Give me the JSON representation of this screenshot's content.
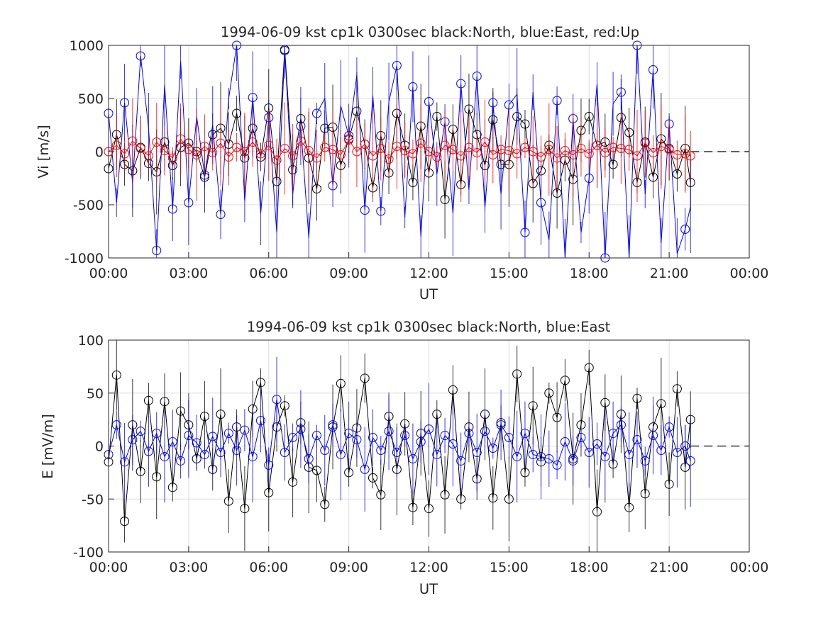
{
  "chart_data": [
    {
      "type": "line",
      "title": "1994-06-09 kst cp1k 0300sec black:North, blue:East, red:Up",
      "xlabel": "UT",
      "ylabel": "Vi [m/s]",
      "xlim": [
        0,
        24
      ],
      "ylim": [
        -1000,
        1000
      ],
      "x_ticks": [
        "00:00",
        "03:00",
        "06:00",
        "09:00",
        "12:00",
        "15:00",
        "18:00",
        "21:00",
        "00:00"
      ],
      "y_ticks": [
        "-1000",
        "-500",
        "0",
        "500",
        "1000"
      ],
      "grid": true,
      "marker": "circle",
      "data_end_hour": 21.8,
      "zero_line_after_end": true,
      "series": [
        {
          "name": "North",
          "color": "#000000",
          "marker_every": 1,
          "x": [
            0.0,
            0.3,
            0.6,
            0.9,
            1.2,
            1.5,
            1.8,
            2.1,
            2.4,
            2.7,
            3.0,
            3.3,
            3.6,
            3.9,
            4.2,
            4.5,
            4.8,
            5.1,
            5.4,
            5.7,
            6.0,
            6.3,
            6.6,
            6.9,
            7.2,
            7.5,
            7.8,
            8.1,
            8.4,
            8.7,
            9.0,
            9.3,
            9.6,
            9.9,
            10.2,
            10.5,
            10.8,
            11.1,
            11.4,
            11.7,
            12.0,
            12.3,
            12.6,
            12.9,
            13.2,
            13.5,
            13.8,
            14.1,
            14.4,
            14.7,
            15.0,
            15.3,
            15.6,
            15.9,
            16.2,
            16.5,
            16.8,
            17.1,
            17.4,
            17.7,
            18.0,
            18.3,
            18.6,
            18.9,
            19.2,
            19.5,
            19.8,
            20.1,
            20.4,
            20.7,
            21.0,
            21.3,
            21.6,
            21.8
          ],
          "y": [
            -160,
            160,
            -120,
            -180,
            40,
            -110,
            -190,
            90,
            -130,
            40,
            80,
            0,
            -240,
            160,
            220,
            70,
            360,
            -60,
            220,
            -50,
            410,
            -280,
            960,
            -170,
            310,
            -60,
            -350,
            220,
            230,
            -130,
            120,
            380,
            70,
            -340,
            150,
            -200,
            360,
            60,
            -290,
            240,
            -200,
            330,
            -450,
            210,
            -310,
            400,
            160,
            -130,
            300,
            -120,
            -120,
            330,
            260,
            -300,
            -180,
            60,
            -390,
            -80,
            -260,
            200,
            330,
            60,
            90,
            -120,
            320,
            180,
            -290,
            90,
            -240,
            120,
            30,
            -210,
            30,
            -290
          ]
        },
        {
          "name": "East",
          "color": "#0000ff",
          "marker_every": 2,
          "x": [
            0.0,
            0.3,
            0.6,
            0.9,
            1.2,
            1.5,
            1.8,
            2.1,
            2.4,
            2.7,
            3.0,
            3.3,
            3.6,
            3.9,
            4.2,
            4.5,
            4.8,
            5.1,
            5.4,
            5.7,
            6.0,
            6.3,
            6.6,
            6.9,
            7.2,
            7.5,
            7.8,
            8.1,
            8.4,
            8.7,
            9.0,
            9.3,
            9.6,
            9.9,
            10.2,
            10.5,
            10.8,
            11.1,
            11.4,
            11.7,
            12.0,
            12.3,
            12.6,
            12.9,
            13.2,
            13.5,
            13.8,
            14.1,
            14.4,
            14.7,
            15.0,
            15.3,
            15.6,
            15.9,
            16.2,
            16.5,
            16.8,
            17.1,
            17.4,
            17.7,
            18.0,
            18.3,
            18.6,
            18.9,
            19.2,
            19.5,
            19.8,
            20.1,
            20.4,
            20.7,
            21.0,
            21.3,
            21.6,
            21.8
          ],
          "y": [
            360,
            -480,
            460,
            -300,
            900,
            220,
            -930,
            630,
            -540,
            850,
            -480,
            330,
            -220,
            250,
            -590,
            500,
            1000,
            -460,
            510,
            -580,
            320,
            -760,
            950,
            -400,
            240,
            -810,
            360,
            500,
            -320,
            430,
            150,
            720,
            -550,
            530,
            -560,
            470,
            810,
            -620,
            610,
            -800,
            470,
            -210,
            280,
            -580,
            640,
            -360,
            710,
            -530,
            460,
            -400,
            440,
            540,
            -760,
            560,
            -480,
            -830,
            480,
            -1000,
            310,
            -760,
            -250,
            640,
            -1000,
            450,
            560,
            -1000,
            1000,
            -400,
            770,
            -860,
            260,
            -960,
            -730,
            -520
          ]
        },
        {
          "name": "Up",
          "color": "#ff0000",
          "marker_every": 1,
          "x": [
            0.0,
            0.3,
            0.6,
            0.9,
            1.2,
            1.5,
            1.8,
            2.1,
            2.4,
            2.7,
            3.0,
            3.3,
            3.6,
            3.9,
            4.2,
            4.5,
            4.8,
            5.1,
            5.4,
            5.7,
            6.0,
            6.3,
            6.6,
            6.9,
            7.2,
            7.5,
            7.8,
            8.1,
            8.4,
            8.7,
            9.0,
            9.3,
            9.6,
            9.9,
            10.2,
            10.5,
            10.8,
            11.1,
            11.4,
            11.7,
            12.0,
            12.3,
            12.6,
            12.9,
            13.2,
            13.5,
            13.8,
            14.1,
            14.4,
            14.7,
            15.0,
            15.3,
            15.6,
            15.9,
            16.2,
            16.5,
            16.8,
            17.1,
            17.4,
            17.7,
            18.0,
            18.3,
            18.6,
            18.9,
            19.2,
            19.5,
            19.8,
            20.1,
            20.4,
            20.7,
            21.0,
            21.3,
            21.6,
            21.8
          ],
          "y": [
            0,
            60,
            -20,
            100,
            30,
            -40,
            90,
            10,
            -60,
            120,
            20,
            -30,
            50,
            -10,
            80,
            -50,
            40,
            0,
            90,
            -20,
            60,
            -80,
            30,
            -40,
            100,
            10,
            -60,
            40,
            20,
            -30,
            110,
            0,
            70,
            -40,
            30,
            -70,
            50,
            10,
            -20,
            80,
            0,
            -50,
            60,
            20,
            -40,
            40,
            -10,
            90,
            -30,
            20,
            10,
            -20,
            40,
            0,
            -50,
            20,
            -60,
            10,
            -30,
            30,
            -20,
            60,
            -10,
            40,
            30,
            20,
            -40,
            80,
            -10,
            50,
            20,
            -30,
            -20,
            -40
          ]
        }
      ]
    },
    {
      "type": "line",
      "title": "1994-06-09 kst cp1k 0300sec black:North, blue:East",
      "xlabel": "UT",
      "ylabel": "E [mV/m]",
      "xlim": [
        0,
        24
      ],
      "ylim": [
        -100,
        100
      ],
      "x_ticks": [
        "00:00",
        "03:00",
        "06:00",
        "09:00",
        "12:00",
        "15:00",
        "18:00",
        "21:00",
        "00:00"
      ],
      "y_ticks": [
        "-100",
        "-50",
        "0",
        "50",
        "100"
      ],
      "grid": true,
      "marker": "circle",
      "data_end_hour": 21.8,
      "zero_line_after_end": true,
      "series": [
        {
          "name": "North",
          "color": "#000000",
          "marker_every": 1,
          "x": [
            0.0,
            0.3,
            0.6,
            0.9,
            1.2,
            1.5,
            1.8,
            2.1,
            2.4,
            2.7,
            3.0,
            3.3,
            3.6,
            3.9,
            4.2,
            4.5,
            4.8,
            5.1,
            5.4,
            5.7,
            6.0,
            6.3,
            6.6,
            6.9,
            7.2,
            7.5,
            7.8,
            8.1,
            8.4,
            8.7,
            9.0,
            9.3,
            9.6,
            9.9,
            10.2,
            10.5,
            10.8,
            11.1,
            11.4,
            11.7,
            12.0,
            12.3,
            12.6,
            12.9,
            13.2,
            13.5,
            13.8,
            14.1,
            14.4,
            14.7,
            15.0,
            15.3,
            15.6,
            15.9,
            16.2,
            16.5,
            16.8,
            17.1,
            17.4,
            17.7,
            18.0,
            18.3,
            18.6,
            18.9,
            19.2,
            19.5,
            19.8,
            20.1,
            20.4,
            20.7,
            21.0,
            21.3,
            21.6,
            21.8
          ],
          "y": [
            -15,
            67,
            -71,
            20,
            -24,
            43,
            -29,
            42,
            -39,
            33,
            20,
            -12,
            28,
            -22,
            30,
            -52,
            18,
            -59,
            35,
            60,
            -44,
            18,
            38,
            -34,
            22,
            -20,
            -23,
            -55,
            18,
            59,
            -25,
            17,
            64,
            -30,
            -46,
            28,
            -22,
            21,
            -58,
            12,
            -59,
            30,
            -46,
            53,
            -50,
            18,
            -31,
            30,
            -49,
            22,
            -50,
            68,
            -25,
            38,
            -15,
            50,
            27,
            62,
            -12,
            20,
            74,
            -62,
            41,
            -17,
            30,
            -58,
            45,
            -45,
            18,
            40,
            -36,
            54,
            -20,
            25
          ]
        },
        {
          "name": "East",
          "color": "#0000ff",
          "marker_every": 1,
          "x": [
            0.0,
            0.3,
            0.6,
            0.9,
            1.2,
            1.5,
            1.8,
            2.1,
            2.4,
            2.7,
            3.0,
            3.3,
            3.6,
            3.9,
            4.2,
            4.5,
            4.8,
            5.1,
            5.4,
            5.7,
            6.0,
            6.3,
            6.6,
            6.9,
            7.2,
            7.5,
            7.8,
            8.1,
            8.4,
            8.7,
            9.0,
            9.3,
            9.6,
            9.9,
            10.2,
            10.5,
            10.8,
            11.1,
            11.4,
            11.7,
            12.0,
            12.3,
            12.6,
            12.9,
            13.2,
            13.5,
            13.8,
            14.1,
            14.4,
            14.7,
            15.0,
            15.3,
            15.6,
            15.9,
            16.2,
            16.5,
            16.8,
            17.1,
            17.4,
            17.7,
            18.0,
            18.3,
            18.6,
            18.9,
            19.2,
            19.5,
            19.8,
            20.1,
            20.4,
            20.7,
            21.0,
            21.3,
            21.6,
            21.8
          ],
          "y": [
            -8,
            20,
            -15,
            6,
            14,
            -5,
            12,
            -10,
            4,
            -14,
            10,
            3,
            -8,
            9,
            -6,
            12,
            -4,
            15,
            -10,
            24,
            -18,
            44,
            -6,
            8,
            16,
            -12,
            10,
            -4,
            20,
            -8,
            12,
            6,
            -22,
            8,
            -4,
            14,
            -6,
            10,
            -12,
            4,
            16,
            -8,
            10,
            2,
            -14,
            12,
            -6,
            14,
            -2,
            20,
            8,
            -10,
            12,
            -8,
            -10,
            -12,
            -18,
            4,
            -14,
            8,
            -6,
            2,
            -10,
            12,
            20,
            -8,
            6,
            -14,
            10,
            -4,
            18,
            -6,
            0,
            -14
          ]
        }
      ]
    }
  ]
}
